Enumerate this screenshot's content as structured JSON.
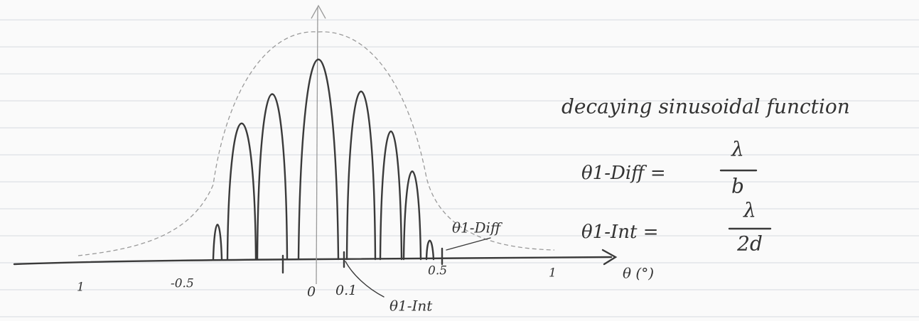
{
  "description": "decaying sinusoidal function",
  "equations": [
    {
      "lhs": "θ1-Diff =",
      "numerator": "λ",
      "denominator": "b"
    },
    {
      "lhs": "θ1-Int =",
      "numerator": "λ",
      "denominator": "2d"
    }
  ],
  "axis": {
    "label": "θ (°)",
    "ticks": [
      "1",
      "-0.5",
      "0",
      "0.1",
      "0.5",
      "1"
    ]
  },
  "annotations": {
    "diff": "θ1-Diff",
    "int": "θ1-Int"
  }
}
